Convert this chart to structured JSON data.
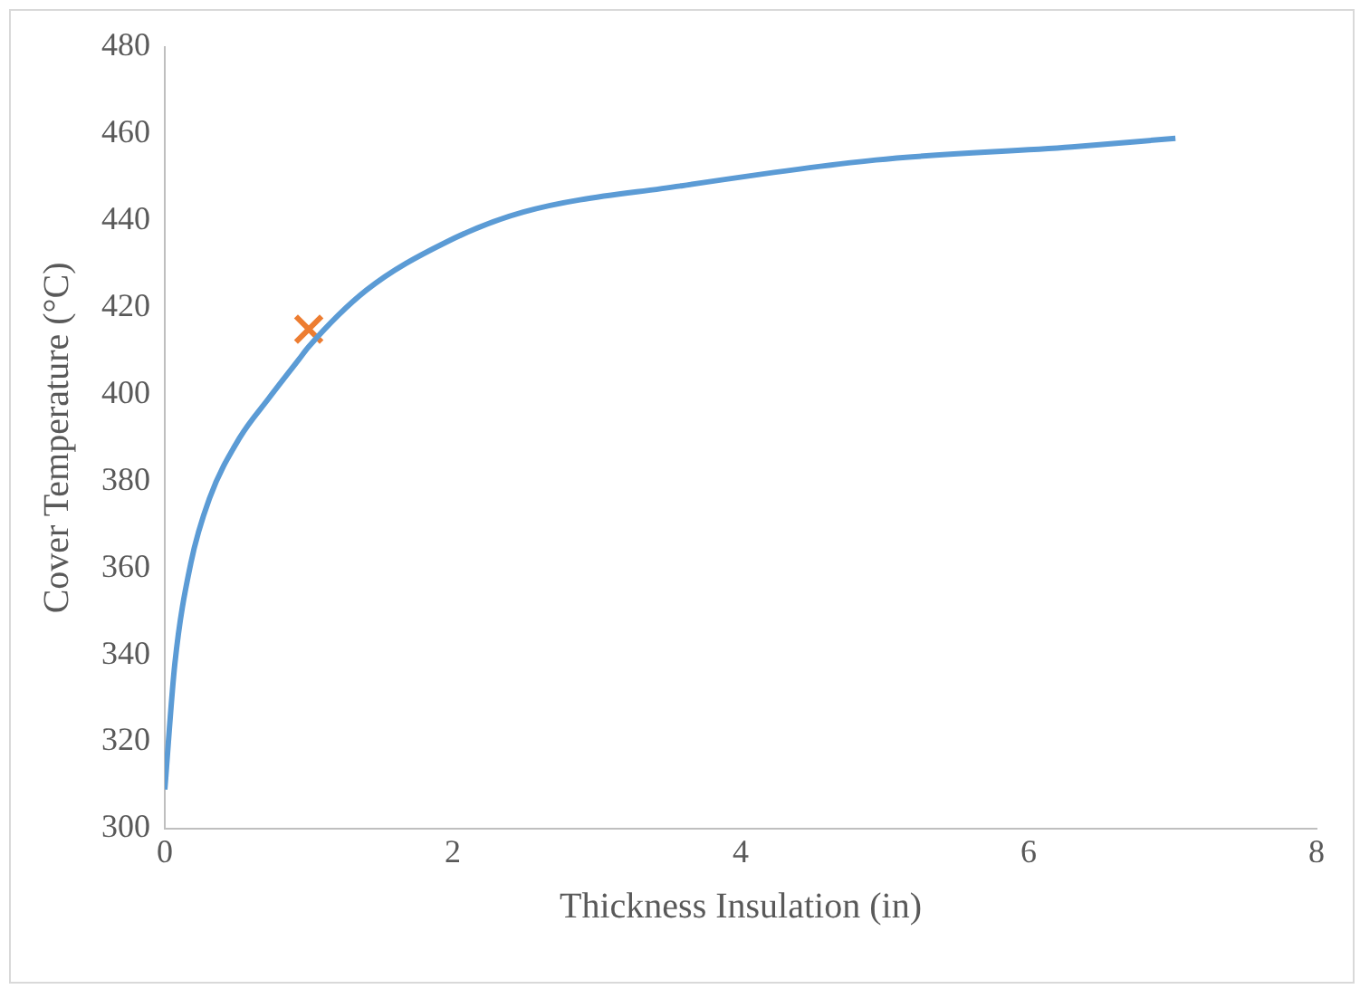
{
  "chart_data": {
    "type": "line",
    "xlabel": "Thickness Insulation (in)",
    "ylabel": "Cover Temperature (°C)",
    "xlim": [
      0,
      8
    ],
    "xticks": [
      0,
      2,
      4,
      6,
      8
    ],
    "ylim": [
      300,
      480
    ],
    "yticks": [
      300,
      320,
      340,
      360,
      380,
      400,
      420,
      440,
      460,
      480
    ],
    "grid": false,
    "legend": false,
    "series": [
      {
        "type": "line",
        "color": "#5b9bd5",
        "marker": "none",
        "x": [
          0,
          0.07,
          0.18,
          0.31,
          0.52,
          0.72,
          0.93,
          1.0,
          1.4,
          1.95,
          2.49,
          3.58,
          4.94,
          6.3,
          7.02
        ],
        "values": [
          309,
          338,
          361,
          376,
          390,
          399,
          408,
          411,
          424,
          435,
          442,
          448,
          454,
          457,
          459
        ]
      },
      {
        "type": "scatter",
        "color": "#ed7d31",
        "marker": "cross",
        "x": [
          1.0
        ],
        "values": [
          415
        ]
      }
    ]
  }
}
